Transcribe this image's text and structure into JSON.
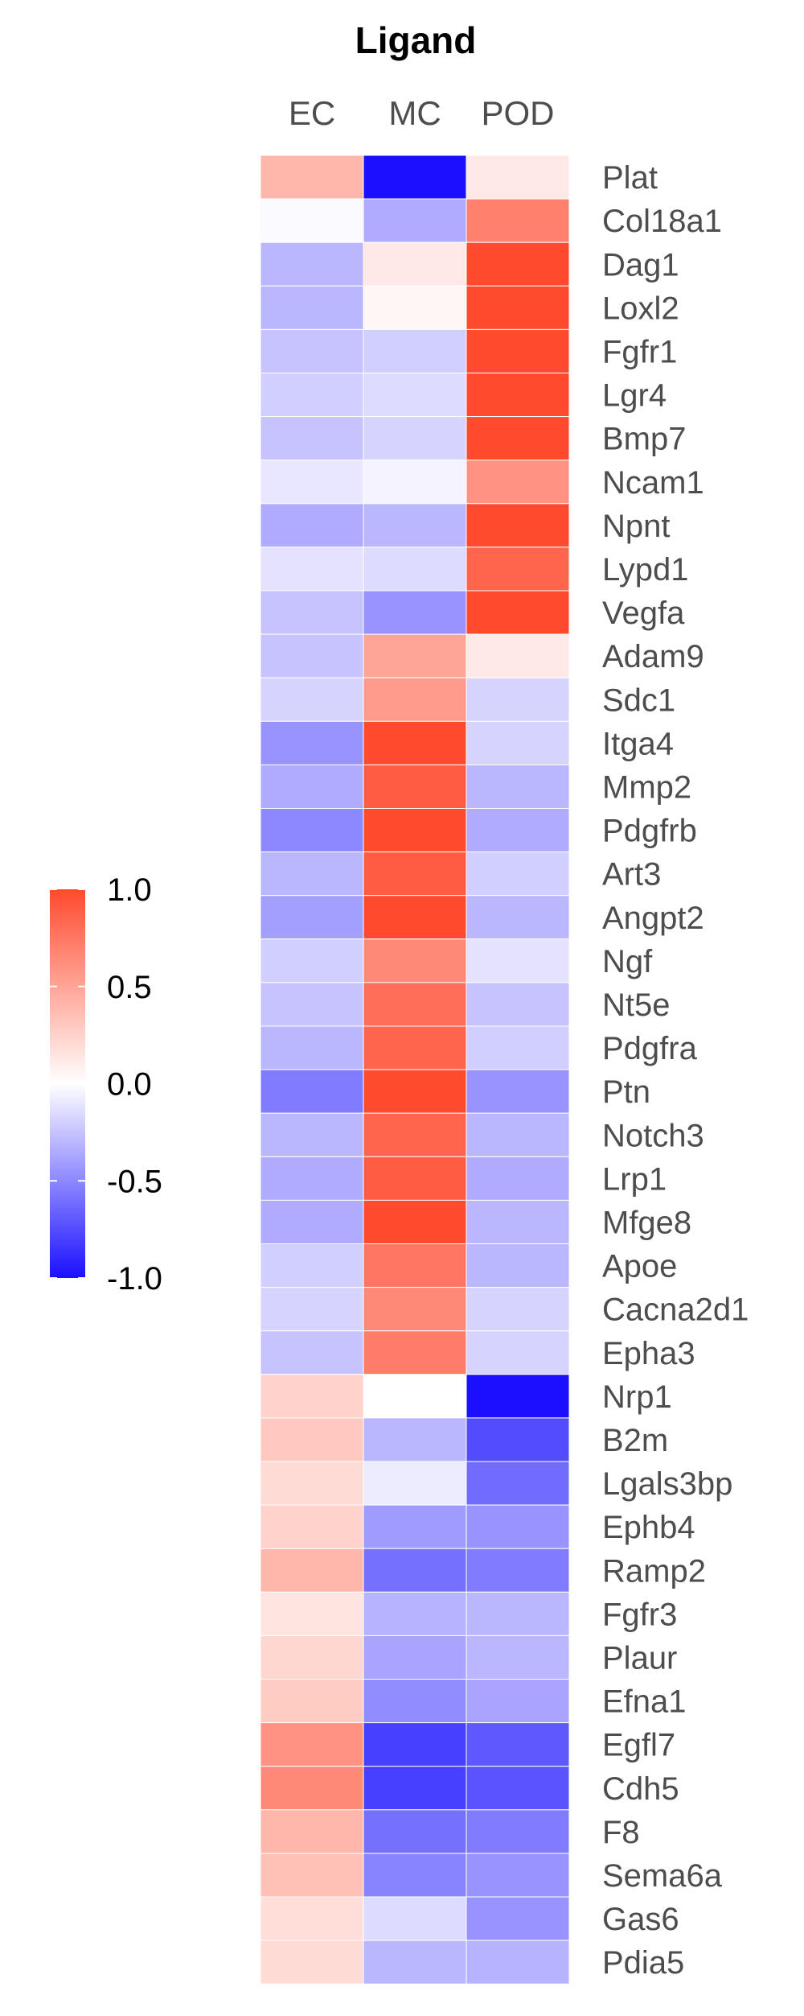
{
  "chart_data": {
    "type": "heatmap",
    "title": "Ligand",
    "columns": [
      "EC",
      "MC",
      "POD"
    ],
    "rows": [
      "Plat",
      "Col18a1",
      "Dag1",
      "Loxl2",
      "Fgfr1",
      "Lgr4",
      "Bmp7",
      "Ncam1",
      "Npnt",
      "Lypd1",
      "Vegfa",
      "Adam9",
      "Sdc1",
      "Itga4",
      "Mmp2",
      "Pdgfrb",
      "Art3",
      "Angpt2",
      "Ngf",
      "Nt5e",
      "Pdgfra",
      "Ptn",
      "Notch3",
      "Lrp1",
      "Mfge8",
      "Apoe",
      "Cacna2d1",
      "Epha3",
      "Nrp1",
      "B2m",
      "Lgals3bp",
      "Ephb4",
      "Ramp2",
      "Fgfr3",
      "Plaur",
      "Efna1",
      "Egfl7",
      "Cdh5",
      "F8",
      "Sema6a",
      "Gas6",
      "Pdia5"
    ],
    "values": [
      [
        0.4,
        -1.0,
        0.12
      ],
      [
        -0.02,
        -0.35,
        0.7
      ],
      [
        -0.3,
        0.12,
        1.0
      ],
      [
        -0.3,
        0.05,
        1.0
      ],
      [
        -0.25,
        -0.2,
        1.0
      ],
      [
        -0.2,
        -0.15,
        1.0
      ],
      [
        -0.25,
        -0.18,
        1.0
      ],
      [
        -0.1,
        -0.05,
        0.6
      ],
      [
        -0.35,
        -0.3,
        1.0
      ],
      [
        -0.12,
        -0.15,
        0.85
      ],
      [
        -0.25,
        -0.45,
        1.0
      ],
      [
        -0.25,
        0.5,
        0.12
      ],
      [
        -0.18,
        0.55,
        -0.18
      ],
      [
        -0.45,
        1.0,
        -0.18
      ],
      [
        -0.35,
        0.9,
        -0.3
      ],
      [
        -0.5,
        1.0,
        -0.35
      ],
      [
        -0.3,
        0.9,
        -0.2
      ],
      [
        -0.4,
        1.0,
        -0.3
      ],
      [
        -0.2,
        0.65,
        -0.12
      ],
      [
        -0.25,
        0.8,
        -0.25
      ],
      [
        -0.3,
        0.85,
        -0.2
      ],
      [
        -0.55,
        1.0,
        -0.45
      ],
      [
        -0.3,
        0.85,
        -0.3
      ],
      [
        -0.35,
        0.9,
        -0.35
      ],
      [
        -0.35,
        1.0,
        -0.3
      ],
      [
        -0.2,
        0.75,
        -0.3
      ],
      [
        -0.18,
        0.65,
        -0.18
      ],
      [
        -0.25,
        0.72,
        -0.18
      ],
      [
        0.25,
        0.0,
        -1.0
      ],
      [
        0.3,
        -0.3,
        -0.75
      ],
      [
        0.2,
        -0.08,
        -0.62
      ],
      [
        0.25,
        -0.42,
        -0.45
      ],
      [
        0.4,
        -0.6,
        -0.55
      ],
      [
        0.15,
        -0.32,
        -0.3
      ],
      [
        0.22,
        -0.38,
        -0.3
      ],
      [
        0.28,
        -0.48,
        -0.38
      ],
      [
        0.6,
        -0.8,
        -0.7
      ],
      [
        0.65,
        -0.8,
        -0.72
      ],
      [
        0.4,
        -0.6,
        -0.55
      ],
      [
        0.35,
        -0.52,
        -0.45
      ],
      [
        0.18,
        -0.15,
        -0.45
      ],
      [
        0.2,
        -0.3,
        -0.32
      ]
    ],
    "colorbar": {
      "min": -1.0,
      "max": 1.0,
      "ticks": [
        "1.0",
        "0.5",
        "0.0",
        "-0.5",
        "-1.0"
      ],
      "tick_values": [
        1.0,
        0.5,
        0.0,
        -0.5,
        -1.0
      ]
    },
    "colors": {
      "low": "#1a10ff",
      "mid": "#ffffff",
      "high": "#ff4a2e",
      "text_dark": "#000000",
      "text_label": "#4d4d4d",
      "cell_border": "#ffffff"
    },
    "legend_position": "left"
  }
}
